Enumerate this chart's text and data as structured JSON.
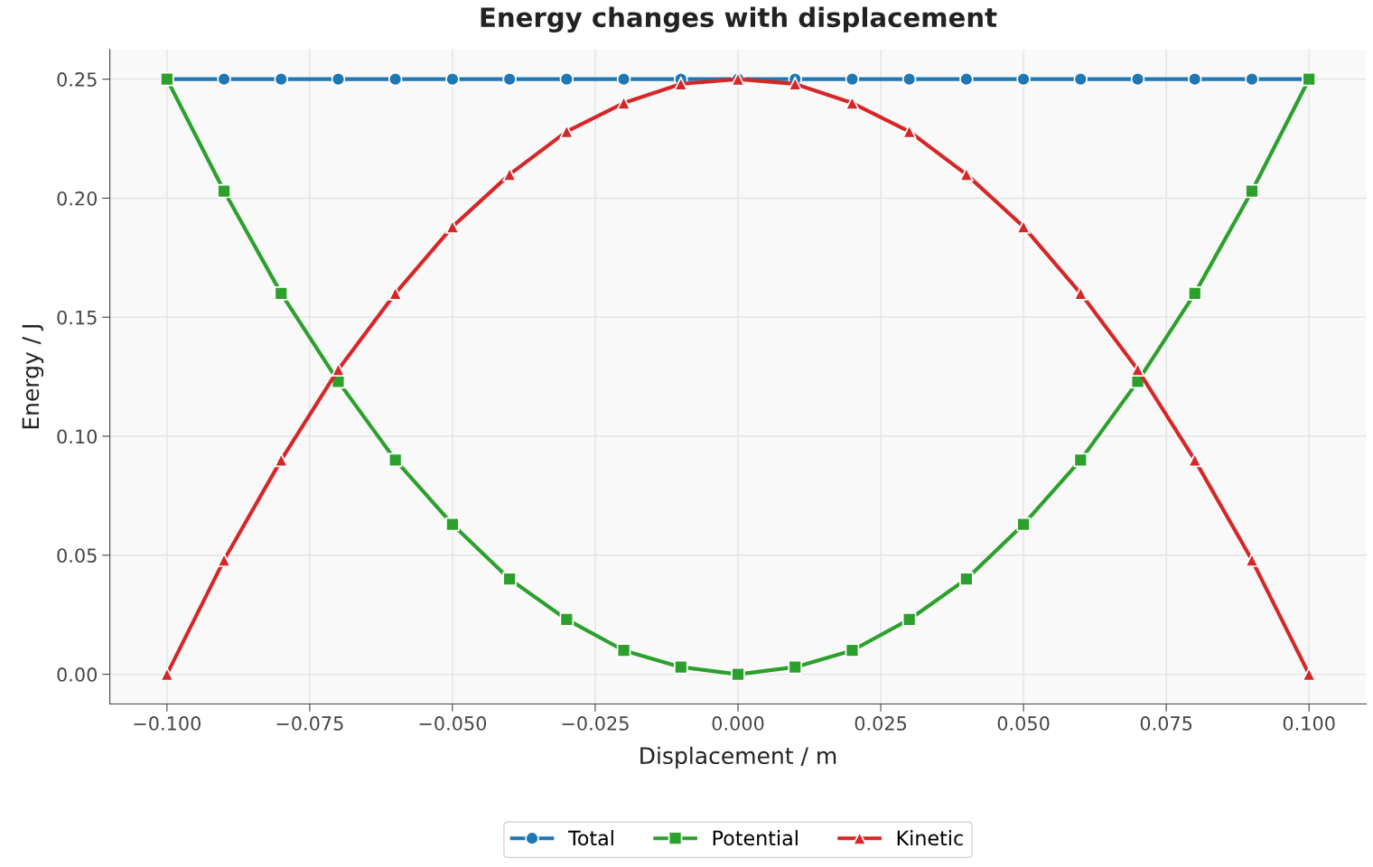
{
  "chart_data": {
    "type": "line",
    "title": "Energy changes with displacement",
    "xlabel": "Displacement / m",
    "ylabel": "Energy / J",
    "x": [
      -0.1,
      -0.09,
      -0.08,
      -0.07,
      -0.06,
      -0.05,
      -0.04,
      -0.03,
      -0.02,
      -0.01,
      0.0,
      0.01,
      0.02,
      0.03,
      0.04,
      0.05,
      0.06,
      0.07,
      0.08,
      0.09,
      0.1
    ],
    "series": [
      {
        "name": "Total",
        "color": "#1f77b4",
        "marker": "circle",
        "values": [
          0.25,
          0.25,
          0.25,
          0.25,
          0.25,
          0.25,
          0.25,
          0.25,
          0.25,
          0.25,
          0.25,
          0.25,
          0.25,
          0.25,
          0.25,
          0.25,
          0.25,
          0.25,
          0.25,
          0.25,
          0.25
        ]
      },
      {
        "name": "Potential",
        "color": "#2ca02c",
        "marker": "square",
        "values": [
          0.25,
          0.203,
          0.16,
          0.123,
          0.09,
          0.063,
          0.04,
          0.023,
          0.01,
          0.003,
          0.0,
          0.003,
          0.01,
          0.023,
          0.04,
          0.063,
          0.09,
          0.123,
          0.16,
          0.203,
          0.25
        ]
      },
      {
        "name": "Kinetic",
        "color": "#d62728",
        "marker": "triangle",
        "values": [
          0.0,
          0.048,
          0.09,
          0.128,
          0.16,
          0.188,
          0.21,
          0.228,
          0.24,
          0.248,
          0.25,
          0.248,
          0.24,
          0.228,
          0.21,
          0.188,
          0.16,
          0.128,
          0.09,
          0.048,
          0.0
        ]
      }
    ],
    "xlim": [
      -0.11,
      0.11
    ],
    "ylim": [
      -0.0125,
      0.2625
    ],
    "xticks": [
      {
        "value": -0.1,
        "label": "−0.100"
      },
      {
        "value": -0.075,
        "label": "−0.075"
      },
      {
        "value": -0.05,
        "label": "−0.050"
      },
      {
        "value": -0.025,
        "label": "−0.025"
      },
      {
        "value": 0.0,
        "label": "0.000"
      },
      {
        "value": 0.025,
        "label": "0.025"
      },
      {
        "value": 0.05,
        "label": "0.050"
      },
      {
        "value": 0.075,
        "label": "0.075"
      },
      {
        "value": 0.1,
        "label": "0.100"
      }
    ],
    "yticks": [
      {
        "value": 0.0,
        "label": "0.00"
      },
      {
        "value": 0.05,
        "label": "0.05"
      },
      {
        "value": 0.1,
        "label": "0.10"
      },
      {
        "value": 0.15,
        "label": "0.15"
      },
      {
        "value": 0.2,
        "label": "0.20"
      },
      {
        "value": 0.25,
        "label": "0.25"
      }
    ],
    "grid": true,
    "legend": "bottom",
    "line_style": "solid"
  }
}
